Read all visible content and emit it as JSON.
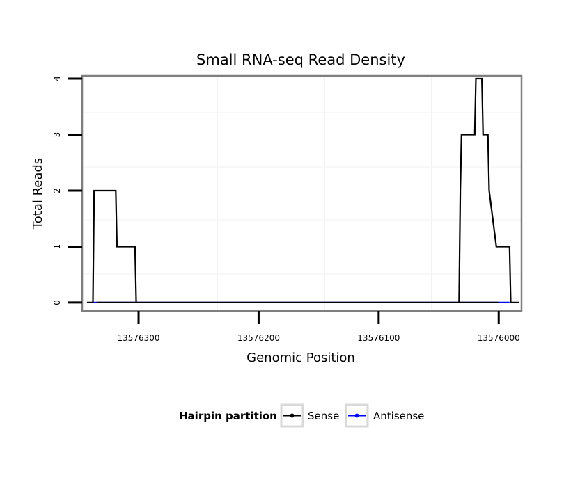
{
  "chart_data": {
    "type": "line",
    "title": "Small RNA-seq Read Density",
    "xlabel": "Genomic Position",
    "ylabel": "Total Reads",
    "x_reversed": true,
    "xlim": [
      13576347,
      13575981
    ],
    "ylim": [
      -0.15,
      4.05
    ],
    "x_ticks": [
      13576300,
      13576200,
      13576100,
      13576000
    ],
    "x_tick_labels": [
      "13576300",
      "13576200",
      "13576100",
      "13576000"
    ],
    "y_ticks": [
      0,
      1,
      2,
      3,
      4
    ],
    "y_tick_labels": [
      "0",
      "1",
      "2",
      "3",
      "4"
    ],
    "grid": true,
    "legend": {
      "title": "Hairpin partition",
      "position": "bottom",
      "entries": [
        {
          "name": "Sense",
          "color": "#000000"
        },
        {
          "name": "Antisense",
          "color": "#0000ff"
        }
      ]
    },
    "series": [
      {
        "name": "Sense",
        "color": "#000000",
        "x": [
          13576343,
          13576338,
          13576337,
          13576319,
          13576318,
          13576303,
          13576302,
          13576335,
          13576301,
          13576300,
          13576299,
          13576000,
          13576033,
          13576032,
          13576031,
          13576020,
          13576019,
          13576014,
          13576013,
          13576009,
          13576008,
          13576002,
          13576001,
          13575991,
          13575990,
          13575983
        ],
        "y": [
          0,
          0,
          2,
          2,
          1,
          1,
          0,
          0,
          0,
          0,
          0,
          0,
          0,
          2,
          3,
          3,
          4,
          4,
          3,
          3,
          2,
          1,
          1,
          1,
          0,
          0
        ]
      },
      {
        "name": "Antisense",
        "color": "#0000ff",
        "x": [
          13576338,
          13576302,
          13576033,
          13575991
        ],
        "y": [
          0,
          0,
          0,
          0
        ]
      }
    ]
  }
}
